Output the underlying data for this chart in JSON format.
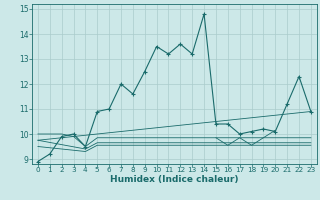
{
  "xlabel": "Humidex (Indice chaleur)",
  "bg_color": "#cce8e8",
  "grid_color": "#aacccc",
  "line_color": "#1a6b6b",
  "xlim": [
    -0.5,
    23.5
  ],
  "ylim": [
    8.8,
    15.2
  ],
  "xticks": [
    0,
    1,
    2,
    3,
    4,
    5,
    6,
    7,
    8,
    9,
    10,
    11,
    12,
    13,
    14,
    15,
    16,
    17,
    18,
    19,
    20,
    21,
    22,
    23
  ],
  "yticks": [
    9,
    10,
    11,
    12,
    13,
    14,
    15
  ],
  "main_line": [
    [
      0,
      8.9
    ],
    [
      1,
      9.2
    ],
    [
      2,
      9.9
    ],
    [
      3,
      10.0
    ],
    [
      4,
      9.5
    ],
    [
      5,
      10.9
    ],
    [
      6,
      11.0
    ],
    [
      7,
      12.0
    ],
    [
      8,
      11.6
    ],
    [
      9,
      12.5
    ],
    [
      10,
      13.5
    ],
    [
      11,
      13.2
    ],
    [
      12,
      13.6
    ],
    [
      13,
      13.2
    ],
    [
      14,
      14.8
    ],
    [
      15,
      10.4
    ],
    [
      16,
      10.4
    ],
    [
      17,
      10.0
    ],
    [
      18,
      10.1
    ],
    [
      19,
      10.2
    ],
    [
      20,
      10.1
    ],
    [
      21,
      11.2
    ],
    [
      22,
      12.3
    ],
    [
      23,
      10.9
    ]
  ],
  "flat_lines": [
    [
      [
        0,
        10.0
      ],
      [
        2,
        10.0
      ],
      [
        3,
        9.9
      ],
      [
        4,
        9.5
      ],
      [
        5,
        9.85
      ],
      [
        23,
        9.85
      ]
    ],
    [
      [
        0,
        9.75
      ],
      [
        4,
        9.4
      ],
      [
        5,
        9.65
      ],
      [
        23,
        9.65
      ]
    ],
    [
      [
        0,
        9.5
      ],
      [
        4,
        9.3
      ],
      [
        5,
        9.55
      ],
      [
        23,
        9.55
      ]
    ]
  ],
  "triangle_line": [
    [
      15,
      9.85
    ],
    [
      16,
      9.55
    ],
    [
      17,
      9.85
    ],
    [
      18,
      9.55
    ],
    [
      19,
      9.85
    ],
    [
      20,
      10.15
    ]
  ],
  "rising_line": [
    [
      0,
      9.75
    ],
    [
      23,
      10.9
    ]
  ]
}
